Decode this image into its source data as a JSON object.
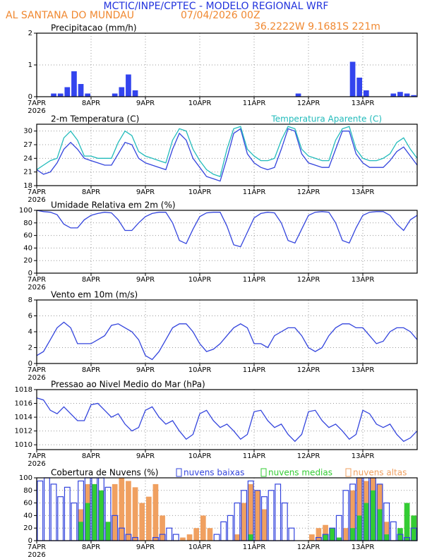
{
  "header": {
    "title": "MCTIC/INPE/CPTEC - MODELO REGIONAL WRF",
    "location": "AL SANTANA DO MUNDAU",
    "run": "07/04/2026 00Z",
    "coords": "36.2222W  9.1681S 221m"
  },
  "chart_data": [
    {
      "type": "bar",
      "title": "Precipitacao (mm/h)",
      "color": "#3344ee",
      "values": [
        0,
        0,
        0.1,
        0.1,
        0.3,
        0.8,
        0.4,
        0.1,
        0,
        0,
        0,
        0.1,
        0.3,
        0.7,
        0.2,
        0,
        0,
        0,
        0,
        0,
        0,
        0,
        0,
        0,
        0,
        0,
        0,
        0,
        0,
        0,
        0,
        0,
        0,
        0,
        0,
        0,
        0,
        0,
        0.1,
        0,
        0,
        0,
        0,
        0,
        0,
        0,
        1.1,
        0.6,
        0.2,
        0,
        0,
        0,
        0.1,
        0.15,
        0.1,
        0.05
      ],
      "ylim": [
        0,
        2
      ],
      "yticks": [
        0,
        1,
        2
      ],
      "xticks": [
        "7APR",
        "8APR",
        "9APR",
        "10APR",
        "11APR",
        "12APR",
        "13APR"
      ],
      "year": "2026",
      "grid": true
    },
    {
      "type": "line",
      "series": [
        {
          "name": "2-m Temperatura (C)",
          "color": "#3344dd",
          "values": [
            21.5,
            20.5,
            21,
            23,
            26,
            27.5,
            26,
            24,
            23.5,
            23,
            22.5,
            22.5,
            25,
            27.5,
            27,
            24,
            23,
            22.5,
            22,
            21.5,
            26,
            29.5,
            28,
            24,
            22,
            20,
            19.5,
            19,
            24,
            29.5,
            30.5,
            25,
            23,
            22,
            21.5,
            22,
            26,
            30.5,
            30,
            25,
            23,
            22.5,
            22,
            22,
            26,
            30,
            30,
            25,
            23,
            22,
            22,
            22,
            23.5,
            25.5,
            26.5,
            24.5,
            22.5
          ]
        },
        {
          "name": "Temperatura Aparente (C)",
          "color": "#22bbbb",
          "values": [
            21.5,
            22.5,
            23.5,
            24,
            28.5,
            30,
            28,
            24.5,
            24.5,
            24,
            24,
            24,
            27.5,
            30,
            29,
            25.5,
            24.5,
            24,
            23.5,
            23,
            28,
            30.5,
            30,
            26,
            23.5,
            21.5,
            20.5,
            20,
            26,
            30.5,
            31,
            26,
            24.5,
            23.5,
            23.5,
            24,
            28,
            31,
            30.5,
            26,
            24.5,
            24,
            23.5,
            23.5,
            28,
            30.5,
            31,
            26,
            24,
            23.5,
            23.5,
            24,
            25,
            27.5,
            28.5,
            26,
            24
          ]
        }
      ],
      "ylim": [
        18,
        31.5
      ],
      "yticks": [
        18,
        21,
        24,
        27,
        30
      ],
      "xticks": [
        "7APR",
        "8APR",
        "9APR",
        "10APR",
        "11APR",
        "12APR",
        "13APR"
      ],
      "year": "2026",
      "grid": true
    },
    {
      "type": "line",
      "title": "Umidade Relativa em 2m (%)",
      "series": [
        {
          "color": "#3344dd",
          "values": [
            100,
            98,
            97,
            93,
            78,
            72,
            72,
            85,
            92,
            95,
            97,
            96,
            85,
            68,
            68,
            80,
            90,
            95,
            97,
            97,
            80,
            52,
            47,
            70,
            90,
            96,
            97,
            97,
            75,
            45,
            42,
            65,
            88,
            95,
            97,
            96,
            80,
            52,
            48,
            70,
            92,
            97,
            98,
            97,
            80,
            52,
            48,
            72,
            92,
            97,
            98,
            98,
            92,
            78,
            68,
            85,
            92
          ]
        }
      ],
      "ylim": [
        0,
        100
      ],
      "yticks": [
        0,
        20,
        40,
        60,
        80,
        100
      ],
      "xticks": [
        "7APR",
        "8APR",
        "9APR",
        "10APR",
        "11APR",
        "12APR",
        "13APR"
      ],
      "year": "2026",
      "grid": true
    },
    {
      "type": "line",
      "title": "Vento em 10m (m/s)",
      "series": [
        {
          "color": "#3344dd",
          "values": [
            1,
            1.5,
            3,
            4.5,
            5.2,
            4.5,
            2.5,
            2.5,
            2.5,
            3,
            3.5,
            4.8,
            5,
            4.5,
            4,
            3,
            1,
            0.5,
            1.5,
            3,
            4.5,
            5,
            5,
            4,
            2.5,
            1.5,
            1.8,
            2.5,
            3.5,
            4.5,
            5,
            4.5,
            2.5,
            2.5,
            2,
            3.5,
            4,
            4.5,
            4.5,
            3.5,
            2,
            1.5,
            2,
            3.5,
            4.5,
            5,
            5,
            4.5,
            4.5,
            3.5,
            2.5,
            2.8,
            4,
            4.5,
            4.5,
            4,
            3
          ]
        }
      ],
      "ylim": [
        0,
        8
      ],
      "yticks": [
        0,
        2,
        4,
        6,
        8
      ],
      "xticks": [
        "7APR",
        "8APR",
        "9APR",
        "10APR",
        "11APR",
        "12APR",
        "13APR"
      ],
      "year": "2026",
      "grid": true
    },
    {
      "type": "line",
      "title": "Pressao ao Nivel Medio do Mar (hPa)",
      "series": [
        {
          "color": "#3344dd",
          "values": [
            1016.8,
            1016.5,
            1015,
            1014.5,
            1015.5,
            1014.5,
            1013.5,
            1013.5,
            1015.8,
            1016,
            1015,
            1014,
            1014.5,
            1013,
            1012,
            1012.5,
            1015,
            1015.5,
            1014,
            1013,
            1013.5,
            1012,
            1010.8,
            1011.5,
            1014.5,
            1015,
            1013.5,
            1012.5,
            1013,
            1012,
            1010.8,
            1011.5,
            1014.8,
            1015,
            1013.5,
            1012.5,
            1013,
            1011.5,
            1010.5,
            1011.5,
            1014.8,
            1015,
            1013.5,
            1012.5,
            1013,
            1012,
            1010.8,
            1011.5,
            1015,
            1014.5,
            1013,
            1012.5,
            1013,
            1011.5,
            1010.5,
            1011,
            1012
          ]
        }
      ],
      "ylim": [
        1009.3,
        1018
      ],
      "yticks": [
        1010,
        1012,
        1014,
        1016,
        1018
      ],
      "xticks": [
        "7APR",
        "8APR",
        "9APR",
        "10APR",
        "11APR",
        "12APR",
        "13APR"
      ],
      "year": "2026",
      "grid": true
    },
    {
      "type": "bar",
      "title": "Cobertura de Nuvens (%)",
      "series": [
        {
          "name": "nuvens baixas",
          "color": "#3344dd",
          "fill": false,
          "values": [
            95,
            100,
            90,
            70,
            85,
            60,
            95,
            100,
            100,
            100,
            85,
            40,
            20,
            10,
            5,
            0,
            0,
            5,
            10,
            20,
            10,
            0,
            0,
            0,
            0,
            0,
            10,
            30,
            40,
            60,
            80,
            95,
            80,
            70,
            80,
            90,
            60,
            20,
            0,
            0,
            0,
            5,
            10,
            20,
            40,
            80,
            90,
            100,
            100,
            100,
            90,
            60,
            30,
            10,
            5,
            20
          ]
        },
        {
          "name": "nuvens medias",
          "color": "#33cc33",
          "fill": true,
          "values": [
            0,
            0,
            0,
            0,
            0,
            0,
            30,
            60,
            90,
            80,
            30,
            0,
            0,
            0,
            0,
            0,
            0,
            0,
            0,
            0,
            0,
            0,
            0,
            0,
            0,
            0,
            0,
            0,
            0,
            0,
            0,
            10,
            0,
            0,
            0,
            0,
            0,
            0,
            0,
            0,
            0,
            0,
            10,
            20,
            5,
            0,
            20,
            40,
            60,
            80,
            50,
            10,
            0,
            20,
            60,
            40
          ]
        },
        {
          "name": "nuvens altas",
          "color": "#f0a060",
          "fill": true,
          "values": [
            0,
            0,
            0,
            0,
            0,
            0,
            50,
            90,
            90,
            40,
            10,
            90,
            100,
            95,
            85,
            60,
            70,
            90,
            40,
            0,
            0,
            5,
            10,
            20,
            40,
            20,
            0,
            0,
            0,
            10,
            60,
            90,
            80,
            50,
            0,
            0,
            0,
            0,
            0,
            0,
            10,
            20,
            25,
            10,
            0,
            20,
            80,
            100,
            95,
            100,
            90,
            30,
            0,
            0,
            50,
            40
          ]
        }
      ],
      "ylim": [
        0,
        100
      ],
      "yticks": [
        0,
        20,
        40,
        60,
        80,
        100
      ],
      "xticks": [
        "7APR",
        "8APR",
        "9APR",
        "10APR",
        "11APR",
        "12APR",
        "13APR"
      ],
      "year": "2026",
      "grid": true
    }
  ]
}
